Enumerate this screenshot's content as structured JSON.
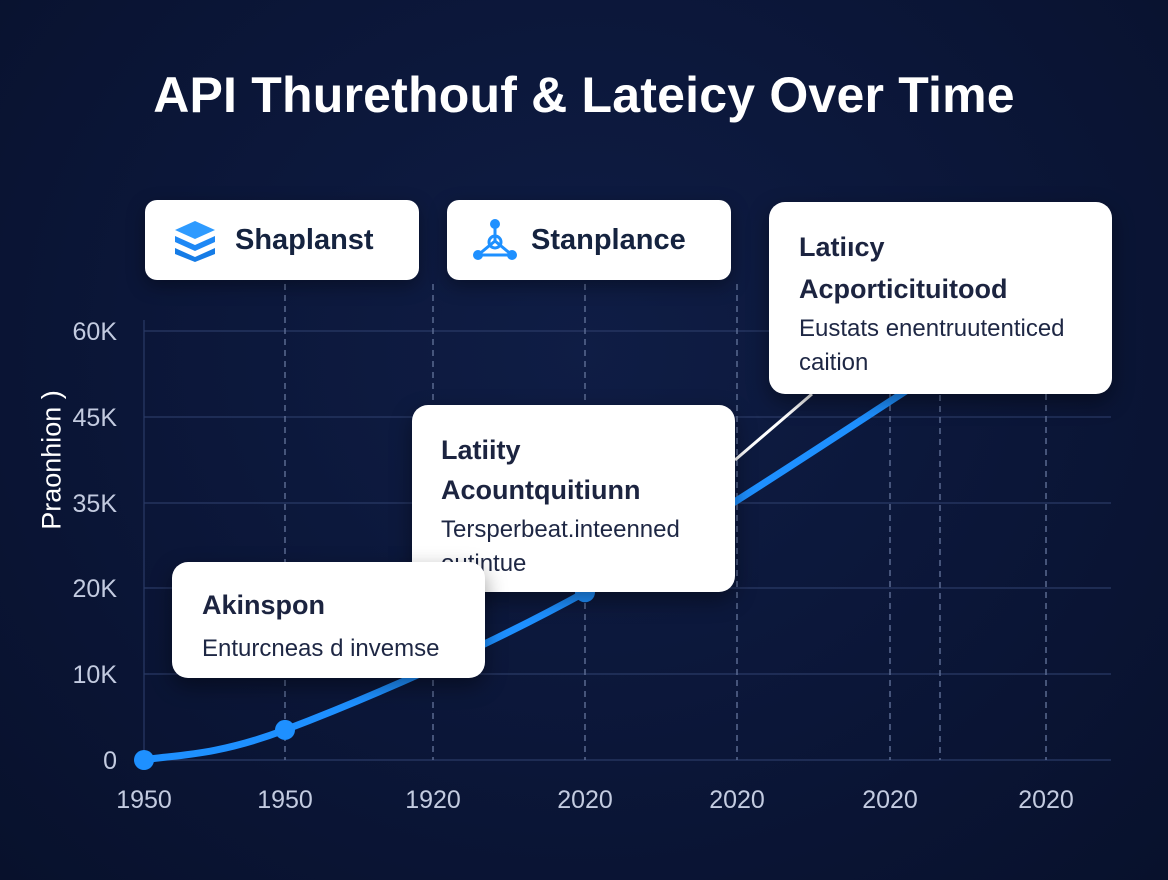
{
  "chart_data": {
    "type": "line",
    "title": "API Thurethouf & Lateicy Over Time",
    "ylabel": "Praonhion )",
    "y_ticks": [
      "0",
      "10K",
      "20K",
      "35K",
      "45K",
      "60K"
    ],
    "x_ticks": [
      "1950",
      "1950",
      "1920",
      "2020",
      "2020",
      "2020",
      "2020"
    ],
    "series": [
      {
        "color": "#1e90ff",
        "points": [
          {
            "tick": 0,
            "value": 0
          },
          {
            "tick": 1,
            "value": 3500
          },
          {
            "tick": 3,
            "value": 19500
          },
          {
            "tick": 5.3,
            "value": 53000
          }
        ]
      }
    ],
    "grid": true
  },
  "legend": [
    {
      "label": "Shaplanst",
      "icon": "stack-icon",
      "color": "#1e90ff"
    },
    {
      "label": "Stanplance",
      "icon": "network-icon",
      "color": "#1e90ff"
    }
  ],
  "callouts": [
    {
      "title": "Latiıcy",
      "subtitle": "Acporticituitood",
      "body": [
        "Eustats enentruutenticed",
        "caition"
      ]
    },
    {
      "title": "Latiity",
      "subtitle": "Acountquitiunn",
      "body": [
        "Tersperbeat.inteenned",
        "outintue"
      ]
    },
    {
      "title": "Akinspon",
      "subtitle": "",
      "body": [
        "Enturcneas d invemse"
      ]
    }
  ]
}
